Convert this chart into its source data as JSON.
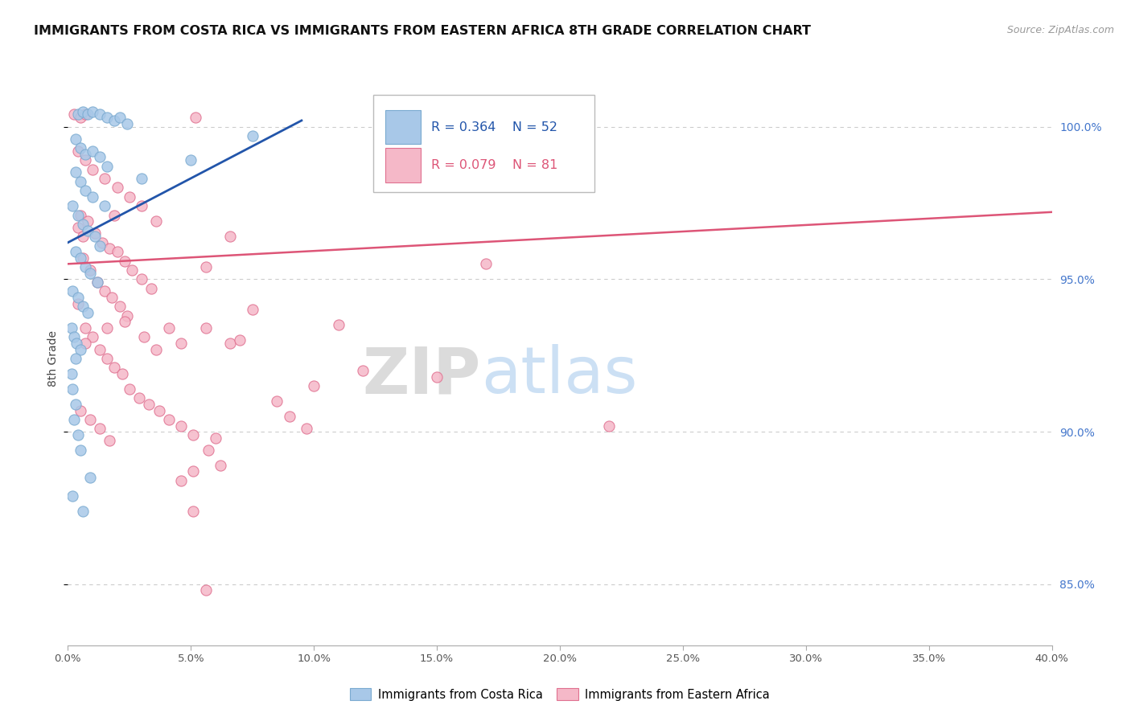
{
  "title": "IMMIGRANTS FROM COSTA RICA VS IMMIGRANTS FROM EASTERN AFRICA 8TH GRADE CORRELATION CHART",
  "source": "Source: ZipAtlas.com",
  "ylabel": "8th Grade",
  "legend_r1": "R = 0.364",
  "legend_n1": "N = 52",
  "legend_r2": "R = 0.079",
  "legend_n2": "N = 81",
  "legend_label1": "Immigrants from Costa Rica",
  "legend_label2": "Immigrants from Eastern Africa",
  "blue_color": "#A8C8E8",
  "blue_edge_color": "#7AAAD0",
  "pink_color": "#F5B8C8",
  "pink_edge_color": "#E07090",
  "blue_line_color": "#2255AA",
  "pink_line_color": "#DD5577",
  "xmin": 0.0,
  "xmax": 40.0,
  "ymin": 83.0,
  "ymax": 101.8,
  "blue_trend_x": [
    0.0,
    9.5
  ],
  "blue_trend_y": [
    96.2,
    100.2
  ],
  "pink_trend_x": [
    0.0,
    40.0
  ],
  "pink_trend_y": [
    95.5,
    97.2
  ],
  "blue_scatter": [
    [
      0.4,
      100.4
    ],
    [
      0.6,
      100.5
    ],
    [
      0.8,
      100.4
    ],
    [
      1.0,
      100.5
    ],
    [
      1.3,
      100.4
    ],
    [
      1.6,
      100.3
    ],
    [
      1.9,
      100.2
    ],
    [
      2.1,
      100.3
    ],
    [
      2.4,
      100.1
    ],
    [
      0.3,
      99.6
    ],
    [
      0.5,
      99.3
    ],
    [
      0.7,
      99.1
    ],
    [
      1.0,
      99.2
    ],
    [
      1.3,
      99.0
    ],
    [
      1.6,
      98.7
    ],
    [
      0.3,
      98.5
    ],
    [
      0.5,
      98.2
    ],
    [
      0.7,
      97.9
    ],
    [
      1.0,
      97.7
    ],
    [
      0.2,
      97.4
    ],
    [
      0.4,
      97.1
    ],
    [
      0.6,
      96.8
    ],
    [
      0.8,
      96.6
    ],
    [
      1.1,
      96.4
    ],
    [
      1.3,
      96.1
    ],
    [
      0.3,
      95.9
    ],
    [
      0.5,
      95.7
    ],
    [
      0.7,
      95.4
    ],
    [
      0.9,
      95.2
    ],
    [
      1.2,
      94.9
    ],
    [
      0.2,
      94.6
    ],
    [
      0.4,
      94.4
    ],
    [
      0.6,
      94.1
    ],
    [
      0.8,
      93.9
    ],
    [
      0.15,
      93.4
    ],
    [
      0.25,
      93.1
    ],
    [
      0.35,
      92.9
    ],
    [
      0.5,
      92.7
    ],
    [
      0.3,
      92.4
    ],
    [
      0.15,
      91.9
    ],
    [
      0.2,
      91.4
    ],
    [
      0.3,
      90.9
    ],
    [
      0.25,
      90.4
    ],
    [
      0.4,
      89.9
    ],
    [
      0.5,
      89.4
    ],
    [
      1.5,
      97.4
    ],
    [
      3.0,
      98.3
    ],
    [
      5.0,
      98.9
    ],
    [
      7.5,
      99.7
    ],
    [
      0.2,
      87.9
    ],
    [
      0.6,
      87.4
    ],
    [
      0.9,
      88.5
    ]
  ],
  "pink_scatter": [
    [
      0.25,
      100.4
    ],
    [
      0.5,
      100.3
    ],
    [
      0.7,
      100.4
    ],
    [
      5.2,
      100.3
    ],
    [
      13.5,
      100.3
    ],
    [
      19.0,
      100.3
    ],
    [
      0.4,
      99.2
    ],
    [
      0.7,
      98.9
    ],
    [
      1.0,
      98.6
    ],
    [
      1.5,
      98.3
    ],
    [
      2.0,
      98.0
    ],
    [
      2.5,
      97.7
    ],
    [
      3.0,
      97.4
    ],
    [
      0.5,
      97.1
    ],
    [
      0.8,
      96.9
    ],
    [
      1.1,
      96.5
    ],
    [
      1.4,
      96.2
    ],
    [
      1.7,
      96.0
    ],
    [
      2.0,
      95.9
    ],
    [
      2.3,
      95.6
    ],
    [
      2.6,
      95.3
    ],
    [
      3.0,
      95.0
    ],
    [
      3.4,
      94.7
    ],
    [
      0.6,
      95.7
    ],
    [
      0.9,
      95.3
    ],
    [
      1.2,
      94.9
    ],
    [
      1.5,
      94.6
    ],
    [
      1.8,
      94.4
    ],
    [
      2.1,
      94.1
    ],
    [
      2.4,
      93.8
    ],
    [
      0.4,
      94.2
    ],
    [
      0.7,
      93.4
    ],
    [
      1.0,
      93.1
    ],
    [
      1.3,
      92.7
    ],
    [
      1.6,
      92.4
    ],
    [
      1.9,
      92.1
    ],
    [
      2.2,
      91.9
    ],
    [
      2.5,
      91.4
    ],
    [
      2.9,
      91.1
    ],
    [
      3.3,
      90.9
    ],
    [
      3.7,
      90.7
    ],
    [
      4.1,
      90.4
    ],
    [
      4.6,
      90.2
    ],
    [
      5.1,
      89.9
    ],
    [
      0.5,
      90.7
    ],
    [
      0.9,
      90.4
    ],
    [
      1.3,
      90.1
    ],
    [
      1.7,
      89.7
    ],
    [
      5.7,
      89.4
    ],
    [
      6.2,
      88.9
    ],
    [
      0.4,
      96.7
    ],
    [
      0.6,
      96.4
    ],
    [
      1.9,
      97.1
    ],
    [
      3.6,
      96.9
    ],
    [
      5.6,
      95.4
    ],
    [
      6.6,
      96.4
    ],
    [
      5.1,
      87.4
    ],
    [
      5.6,
      84.8
    ],
    [
      4.6,
      88.4
    ],
    [
      5.1,
      88.7
    ],
    [
      9.7,
      90.1
    ],
    [
      0.7,
      92.9
    ],
    [
      1.6,
      93.4
    ],
    [
      2.3,
      93.6
    ],
    [
      3.1,
      93.1
    ],
    [
      3.6,
      92.7
    ],
    [
      4.1,
      93.4
    ],
    [
      4.6,
      92.9
    ],
    [
      5.6,
      93.4
    ],
    [
      6.6,
      92.9
    ],
    [
      7.0,
      93.0
    ],
    [
      8.5,
      91.0
    ],
    [
      10.0,
      91.5
    ],
    [
      12.0,
      92.0
    ],
    [
      15.0,
      91.8
    ],
    [
      7.5,
      94.0
    ],
    [
      9.0,
      90.5
    ],
    [
      11.0,
      93.5
    ],
    [
      6.0,
      89.8
    ],
    [
      17.0,
      95.5
    ],
    [
      22.0,
      90.2
    ]
  ],
  "watermark_zip": "ZIP",
  "watermark_atlas": "atlas",
  "background_color": "#ffffff",
  "grid_color": "#cccccc"
}
